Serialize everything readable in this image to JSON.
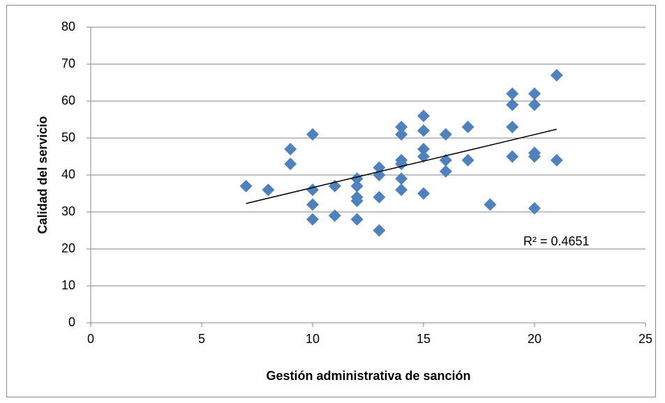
{
  "chart_data": {
    "type": "scatter",
    "x_label": "Gestión administrativa de sanción",
    "y_label": "Calidad del servicio",
    "x": [
      7,
      8,
      9,
      9,
      10,
      10,
      10,
      10,
      11,
      11,
      12,
      12,
      12,
      12,
      12,
      13,
      13,
      13,
      13,
      14,
      14,
      14,
      14,
      14,
      14,
      15,
      15,
      15,
      15,
      15,
      16,
      16,
      16,
      17,
      17,
      18,
      19,
      19,
      19,
      19,
      20,
      20,
      20,
      20,
      20,
      21,
      21
    ],
    "values": [
      37,
      36,
      47,
      43,
      51,
      36,
      32,
      28,
      37,
      29,
      39,
      37,
      34,
      33,
      28,
      42,
      40,
      34,
      25,
      53,
      51,
      44,
      43,
      39,
      36,
      56,
      52,
      47,
      45,
      35,
      51,
      44,
      41,
      53,
      44,
      32,
      62,
      59,
      53,
      45,
      62,
      59,
      46,
      45,
      31,
      67,
      44
    ],
    "color": "#4f81bd",
    "trendline": true,
    "r_squared_label": "R² = 0.4651",
    "xlim": [
      0,
      25
    ],
    "xticks": [
      0,
      5,
      10,
      15,
      20,
      25
    ],
    "ylim": [
      0,
      80
    ],
    "yticks": [
      0,
      10,
      20,
      30,
      40,
      50,
      60,
      70,
      80
    ],
    "grid": true
  }
}
